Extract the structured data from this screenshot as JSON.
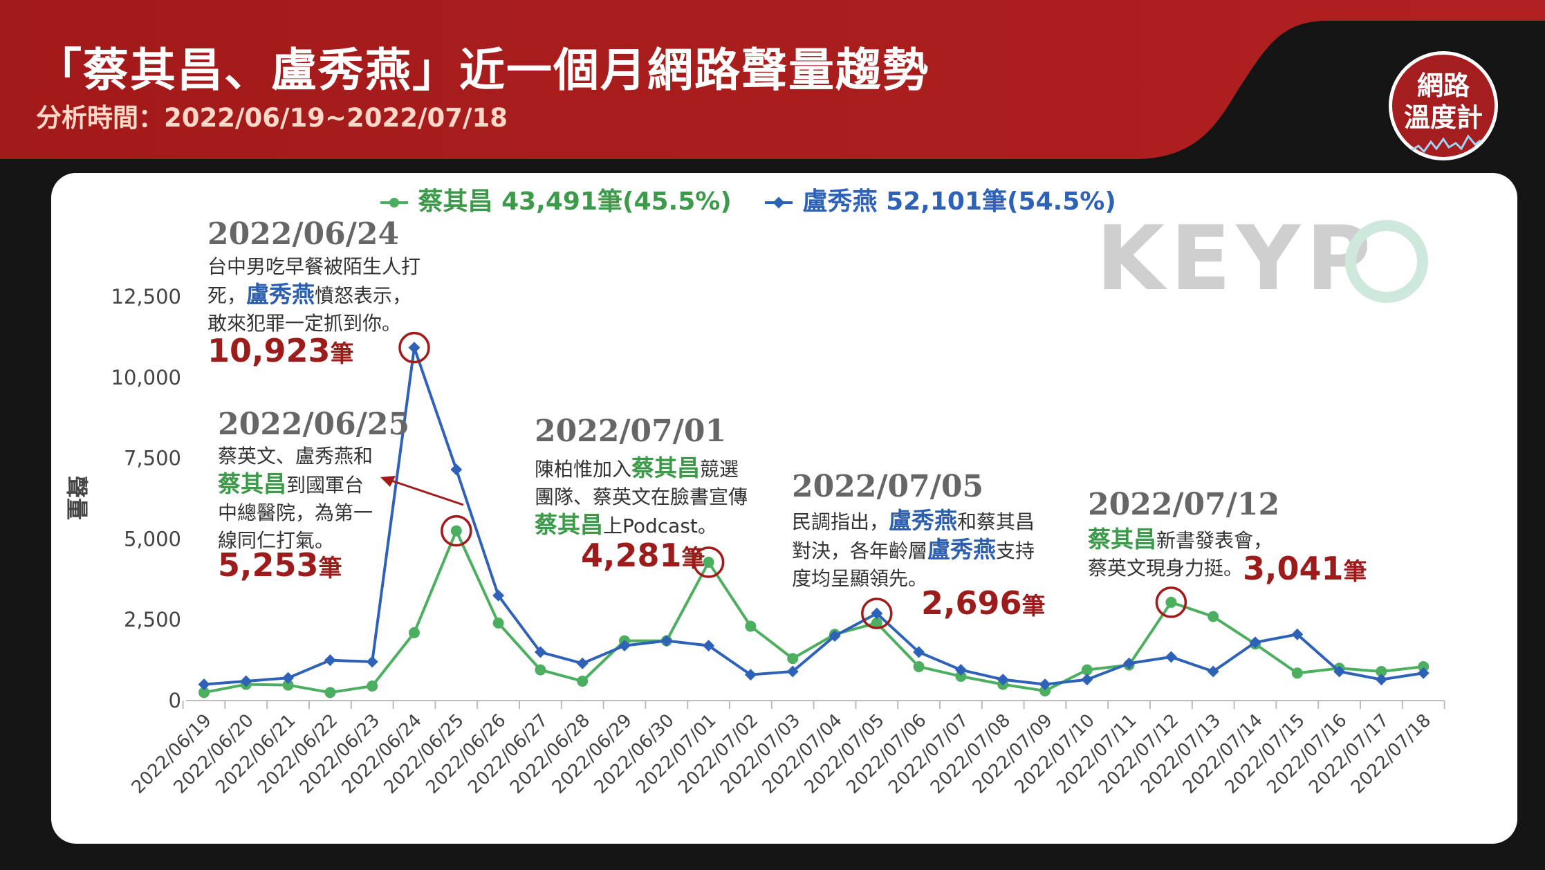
{
  "header": {
    "title": "「蔡其昌、盧秀燕」近一個月網路聲量趨勢",
    "subtitle": "分析時間：2022/06/19~2022/07/18"
  },
  "logo": {
    "line1": "網路",
    "line2": "溫度計"
  },
  "watermark": "KEYP",
  "legend": {
    "green": "蔡其昌 43,491筆(45.5%)",
    "blue": "盧秀燕 52,101筆(54.5%)"
  },
  "annotations": [
    {
      "date": "2022/06/24",
      "l1": "台中男吃早餐被陌生人打",
      "l2a": "死，",
      "l2b": "盧秀燕",
      "l2c": "憤怒表示，",
      "l3": "敢來犯罪一定抓到你。",
      "value": "10,923",
      "unit": "筆"
    },
    {
      "date": "2022/06/25",
      "l1": "蔡英文、盧秀燕和",
      "l2a": "蔡其昌",
      "l2b": "到國軍台",
      "l3": "中總醫院，為第一",
      "l4": "線同仁打氣。",
      "value": "5,253",
      "unit": "筆"
    },
    {
      "date": "2022/07/01",
      "l1a": "陳柏惟加入",
      "l1b": "蔡其昌",
      "l1c": "競選",
      "l2": "團隊、蔡英文在臉書宣傳",
      "l3a": "蔡其昌",
      "l3b": "上Podcast。",
      "value": "4,281",
      "unit": "筆"
    },
    {
      "date": "2022/07/05",
      "l1a": "民調指出，",
      "l1b": "盧秀燕",
      "l1c": "和蔡其昌",
      "l2a": "對決，各年齡層",
      "l2b": "盧秀燕",
      "l2c": "支持",
      "l3": "度均呈顯領先。",
      "value": "2,696",
      "unit": "筆"
    },
    {
      "date": "2022/07/12",
      "l1a": "蔡其昌",
      "l1b": "新書發表會，",
      "l2": "蔡英文現身力挺。",
      "value": "3,041",
      "unit": "筆"
    }
  ],
  "chart_data": {
    "type": "line",
    "title": "「蔡其昌、盧秀燕」近一個月網路聲量趨勢",
    "ylabel": "聲量",
    "ylim": [
      0,
      12500
    ],
    "yticks": [
      0,
      2500,
      5000,
      7500,
      10000,
      12500
    ],
    "categories": [
      "2022/06/19",
      "2022/06/20",
      "2022/06/21",
      "2022/06/22",
      "2022/06/23",
      "2022/06/24",
      "2022/06/25",
      "2022/06/26",
      "2022/06/27",
      "2022/06/28",
      "2022/06/29",
      "2022/06/30",
      "2022/07/01",
      "2022/07/02",
      "2022/07/03",
      "2022/07/04",
      "2022/07/05",
      "2022/07/06",
      "2022/07/07",
      "2022/07/08",
      "2022/07/09",
      "2022/07/10",
      "2022/07/11",
      "2022/07/12",
      "2022/07/13",
      "2022/07/14",
      "2022/07/15",
      "2022/07/16",
      "2022/07/17",
      "2022/07/18"
    ],
    "series": [
      {
        "name": "蔡其昌",
        "color": "#4caf5f",
        "values": [
          250,
          500,
          480,
          250,
          450,
          2100,
          5253,
          2400,
          950,
          600,
          1850,
          1850,
          4281,
          2300,
          1300,
          2050,
          2400,
          1050,
          750,
          500,
          300,
          950,
          1100,
          3041,
          2600,
          1750,
          850,
          1000,
          900,
          1050
        ]
      },
      {
        "name": "盧秀燕",
        "color": "#2e62b8",
        "values": [
          500,
          600,
          700,
          1250,
          1200,
          10923,
          7150,
          3250,
          1500,
          1150,
          1700,
          1850,
          1700,
          800,
          900,
          2000,
          2696,
          1500,
          950,
          650,
          500,
          650,
          1150,
          1350,
          900,
          1800,
          2050,
          900,
          650,
          850
        ]
      }
    ],
    "highlights": [
      {
        "series": "盧秀燕",
        "index": 5
      },
      {
        "series": "蔡其昌",
        "index": 6
      },
      {
        "series": "蔡其昌",
        "index": 12
      },
      {
        "series": "盧秀燕",
        "index": 16
      },
      {
        "series": "蔡其昌",
        "index": 23
      }
    ],
    "grid": false,
    "legend_position": "top"
  }
}
